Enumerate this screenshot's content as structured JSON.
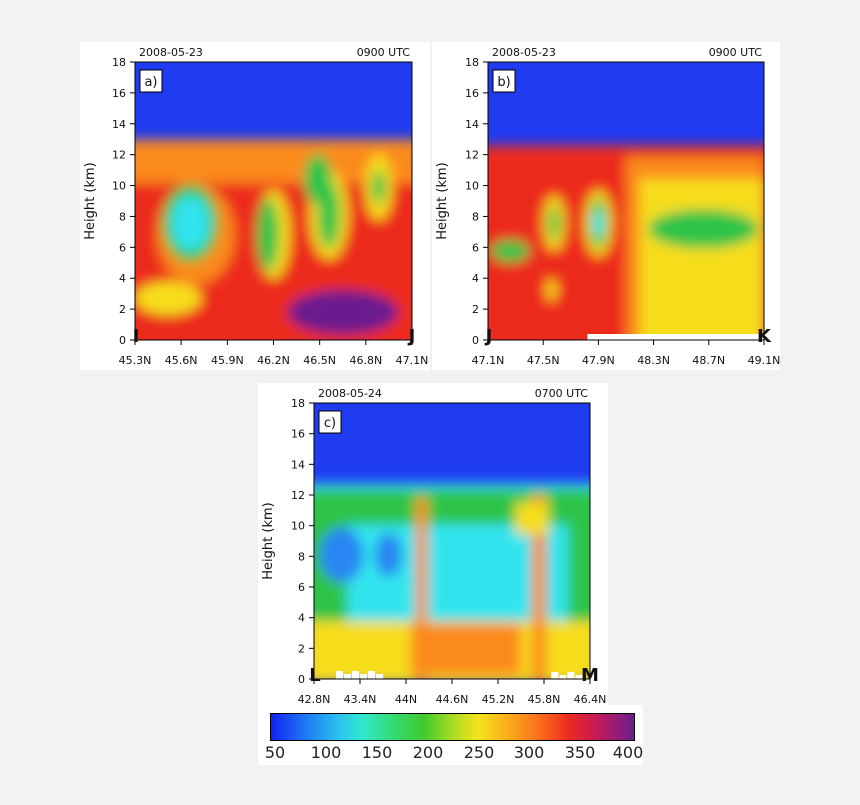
{
  "chart_data": [
    {
      "type": "heatmap",
      "panel_label": "a)",
      "date": "2008-05-23",
      "time": "0900 UTC",
      "ylabel": "Height (km)",
      "yticks": [
        0,
        2,
        4,
        6,
        8,
        10,
        12,
        14,
        16,
        18
      ],
      "ylim": [
        0,
        18
      ],
      "xticks": [
        "45.3N",
        "45.6N",
        "45.9N",
        "46.2N",
        "46.5N",
        "46.8N",
        "47.1N"
      ],
      "start_point": "I",
      "end_point": "J",
      "z_description": "ozone-like field, colour scale 50-400",
      "tropopause_height_km": 12.5
    },
    {
      "type": "heatmap",
      "panel_label": "b)",
      "date": "2008-05-23",
      "time": "0900 UTC",
      "ylabel": "Height (km)",
      "yticks": [
        0,
        2,
        4,
        6,
        8,
        10,
        12,
        14,
        16,
        18
      ],
      "ylim": [
        0,
        18
      ],
      "xticks": [
        "47.1N",
        "47.5N",
        "47.9N",
        "48.3N",
        "48.7N",
        "49.1N"
      ],
      "start_point": "J",
      "end_point": "K",
      "tropopause_height_km": 12.0
    },
    {
      "type": "heatmap",
      "panel_label": "c)",
      "date": "2008-05-24",
      "time": "0700 UTC",
      "ylabel": "Height (km)",
      "yticks": [
        0,
        2,
        4,
        6,
        8,
        10,
        12,
        14,
        16,
        18
      ],
      "ylim": [
        0,
        18
      ],
      "xticks": [
        "42.8N",
        "43.4N",
        "44N",
        "44.6N",
        "45.2N",
        "45.8N",
        "46.4N"
      ],
      "start_point": "L",
      "end_point": "M",
      "tropopause_height_km": 12.3
    }
  ],
  "colorbar": {
    "ticks": [
      "50",
      "100",
      "150",
      "200",
      "250",
      "300",
      "350",
      "400"
    ],
    "range": [
      50,
      400
    ]
  },
  "colors": {
    "sky": "#1f3cf0",
    "cyan": "#33e4ee",
    "green": "#2fc44a",
    "yellow": "#f6dd1e",
    "orange": "#fb8a1c",
    "red": "#ec2b1f",
    "purple": "#6a1f8e"
  }
}
